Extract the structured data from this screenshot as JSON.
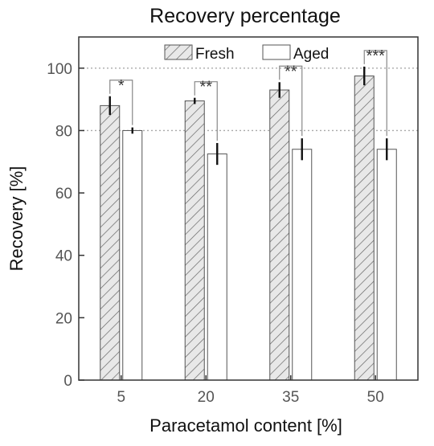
{
  "chart_data": {
    "type": "bar",
    "title": "Recovery percentage",
    "xlabel": "Paracetamol content [%]",
    "ylabel": "Recovery [%]",
    "categories": [
      "5",
      "20",
      "35",
      "50"
    ],
    "series": [
      {
        "name": "Fresh",
        "values": [
          88,
          89.5,
          93,
          97.5
        ],
        "errors": [
          3,
          1,
          2.5,
          3
        ],
        "fill": "hatched"
      },
      {
        "name": "Aged",
        "values": [
          80,
          72.5,
          74,
          74
        ],
        "errors": [
          1,
          3.5,
          3.5,
          3.5
        ],
        "fill": "white"
      }
    ],
    "significance": [
      "*",
      "**",
      "**",
      "***"
    ],
    "ylim": [
      0,
      110
    ],
    "yticks": [
      "0",
      "20",
      "40",
      "60",
      "80",
      "100"
    ],
    "gridlines_y": [
      80,
      100
    ],
    "grid": "dotted horizontal at 80 and 100",
    "legend_position": "top-center"
  },
  "colors": {
    "bar_edge": "#555555",
    "hatch": "#666666",
    "hatch_background": "#e8e8e8",
    "grid": "#aaaaaa",
    "axis": "#333333",
    "error_bar": "#111111",
    "bracket": "#888888"
  }
}
